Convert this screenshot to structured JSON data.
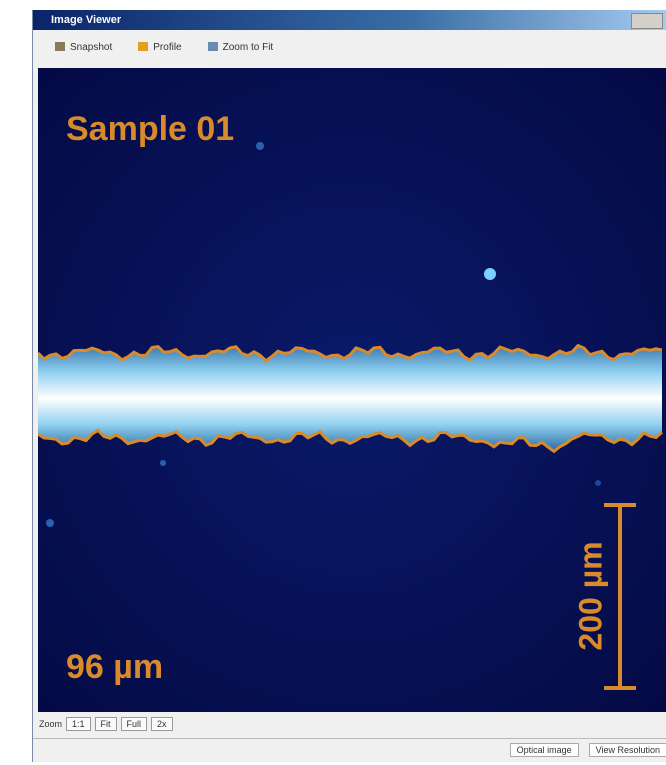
{
  "window": {
    "title": "Image Viewer"
  },
  "toolbar": [
    "Snapshot",
    "Profile",
    "Zoom to Fit"
  ],
  "image": {
    "label": "Sample 01",
    "width_label": "96 µm",
    "scale_label": "200 µm"
  },
  "bottom_bar": {
    "label": "Zoom",
    "buttons": [
      "1:1",
      "Fit",
      "Full",
      "2x"
    ]
  },
  "status": [
    "Optical image",
    "View Resolution"
  ]
}
